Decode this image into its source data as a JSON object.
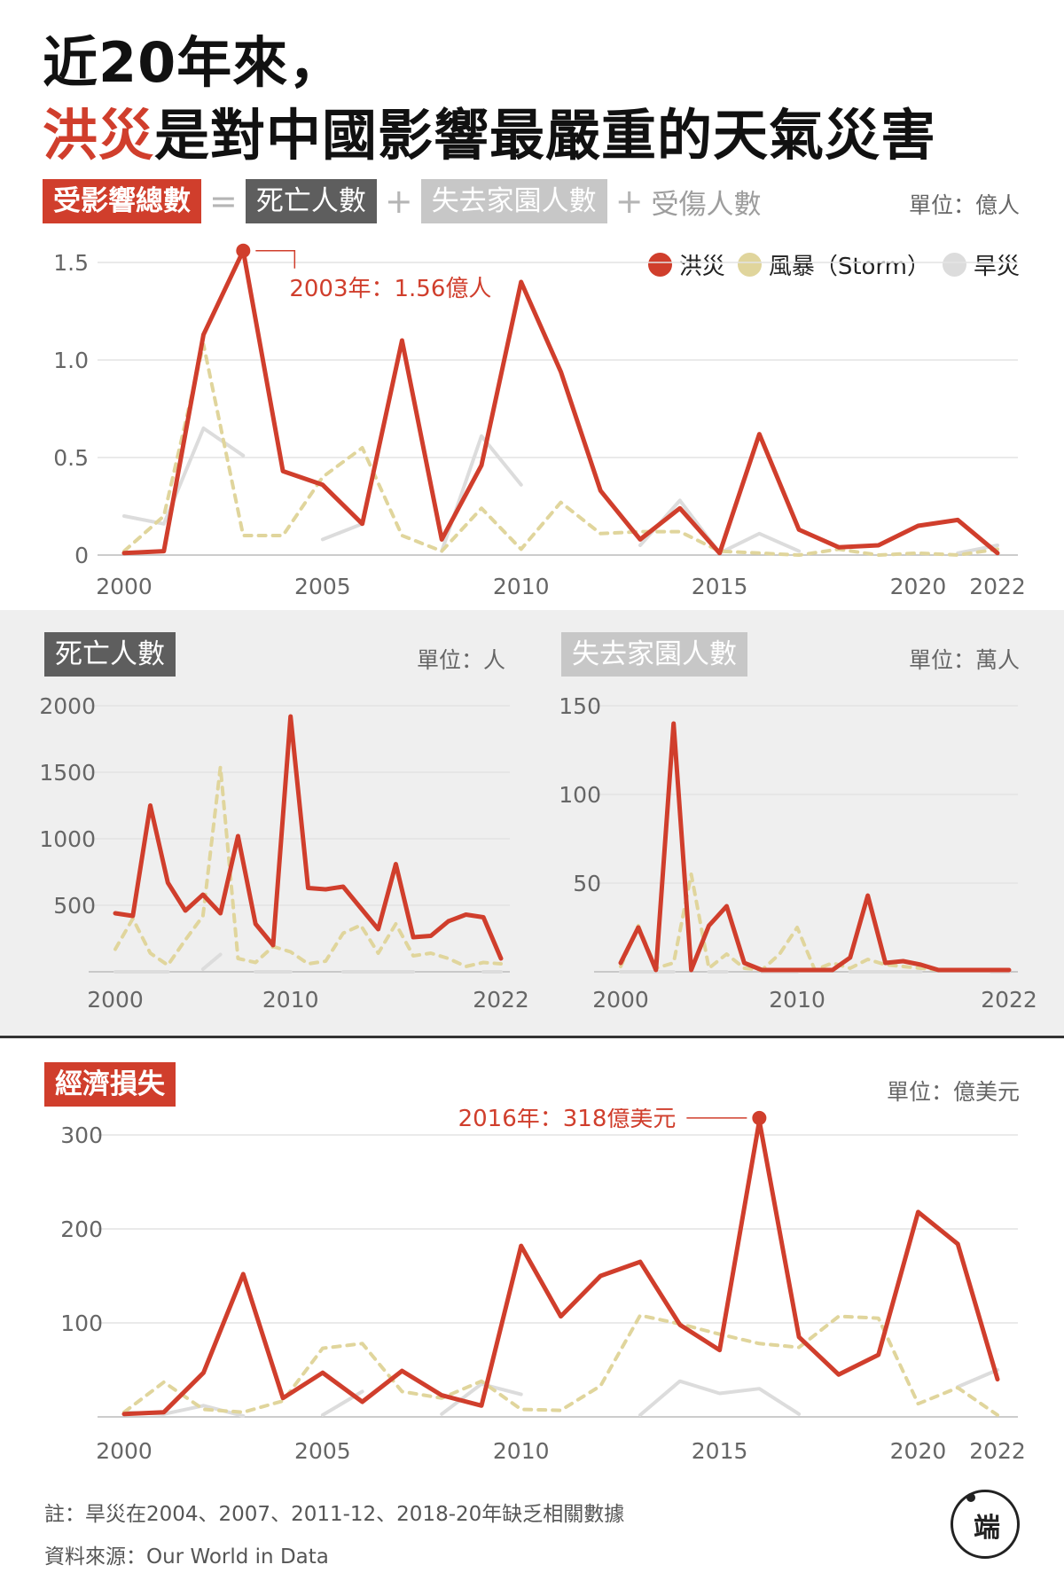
{
  "title": {
    "line1": "近20年來，",
    "highlight": "洪災",
    "line2_rest": "是對中國影響最嚴重的天氣災害"
  },
  "equation": {
    "total": "受影響總數",
    "eq": "=",
    "deaths": "死亡人數",
    "plus": "+",
    "homeless": "失去家園人數",
    "plus2": "+",
    "injured": "受傷人數"
  },
  "units": {
    "top": "單位：億人",
    "deaths": "單位：人",
    "homeless": "單位：萬人",
    "economic": "單位：億美元"
  },
  "legend": [
    {
      "name": "洪災",
      "color": "#d03e2c"
    },
    {
      "name": "風暴（Storm）",
      "color": "#e0d59c"
    },
    {
      "name": "旱災",
      "color": "#dcdcdc"
    }
  ],
  "panels": {
    "deaths": "死亡人數",
    "homeless": "失去家園人數",
    "economic": "經濟損失"
  },
  "notes": {
    "note": "註：旱災在2004、2007、2011-12、2018-20年缺乏相關數據",
    "source": "資料來源：Our World in Data"
  },
  "colors": {
    "flood": "#d03e2c",
    "storm": "#e0d59c",
    "drought": "#dcdcdc",
    "dark": "#5e5e5e"
  },
  "logo": "端",
  "chart_data": [
    {
      "type": "line",
      "id": "affected",
      "x": [
        2000,
        2001,
        2002,
        2003,
        2004,
        2005,
        2006,
        2007,
        2008,
        2009,
        2010,
        2011,
        2012,
        2013,
        2014,
        2015,
        2016,
        2017,
        2018,
        2019,
        2020,
        2021,
        2022
      ],
      "xticks": [
        "2000",
        "2005",
        "2010",
        "2015",
        "2020",
        "2022"
      ],
      "ylim": [
        0,
        1.5
      ],
      "yticks": [
        "0",
        "0.5",
        "1.0",
        "1.5"
      ],
      "series": [
        {
          "name": "洪災",
          "values": [
            0.01,
            0.02,
            1.13,
            1.56,
            0.43,
            0.36,
            0.16,
            1.1,
            0.08,
            0.46,
            1.4,
            0.94,
            0.33,
            0.08,
            0.24,
            0.01,
            0.62,
            0.13,
            0.04,
            0.05,
            0.15,
            0.18,
            0.01
          ]
        },
        {
          "name": "風暴（Storm）",
          "values": [
            0.02,
            0.2,
            1.08,
            0.1,
            0.1,
            0.4,
            0.55,
            0.1,
            0.02,
            0.24,
            0.03,
            0.27,
            0.11,
            0.12,
            0.12,
            0.02,
            0.01,
            0.0,
            0.03,
            0.0,
            0.01,
            0.0,
            0.03
          ]
        },
        {
          "name": "旱災",
          "values": [
            0.2,
            0.16,
            0.65,
            0.51,
            null,
            0.08,
            0.16,
            null,
            0.02,
            0.61,
            0.36,
            null,
            null,
            0.05,
            0.28,
            0.01,
            0.11,
            0.02,
            null,
            null,
            null,
            0.01,
            0.05
          ]
        }
      ],
      "annotation": "2003年：1.56億人"
    },
    {
      "type": "line",
      "id": "deaths",
      "x": [
        2000,
        2001,
        2002,
        2003,
        2004,
        2005,
        2006,
        2007,
        2008,
        2009,
        2010,
        2011,
        2012,
        2013,
        2014,
        2015,
        2016,
        2017,
        2018,
        2019,
        2020,
        2021,
        2022
      ],
      "xticks": [
        "2000",
        "2010",
        "2022"
      ],
      "ylim": [
        0,
        2000
      ],
      "yticks": [
        "500",
        "1000",
        "1500",
        "2000"
      ],
      "series": [
        {
          "name": "洪災",
          "values": [
            440,
            420,
            1250,
            670,
            460,
            580,
            440,
            1020,
            360,
            200,
            1920,
            630,
            620,
            640,
            480,
            320,
            810,
            260,
            270,
            380,
            430,
            410,
            100
          ]
        },
        {
          "name": "風暴（Storm）",
          "values": [
            170,
            400,
            140,
            50,
            240,
            420,
            1540,
            100,
            70,
            190,
            150,
            60,
            80,
            290,
            350,
            140,
            360,
            120,
            140,
            100,
            40,
            70,
            60
          ]
        },
        {
          "name": "旱災",
          "values": [
            0,
            0,
            0,
            0,
            null,
            20,
            130,
            null,
            0,
            0,
            0,
            null,
            null,
            0,
            0,
            0,
            0,
            0,
            null,
            null,
            null,
            0,
            0
          ]
        }
      ]
    },
    {
      "type": "line",
      "id": "homeless",
      "x": [
        2000,
        2001,
        2002,
        2003,
        2004,
        2005,
        2006,
        2007,
        2008,
        2009,
        2010,
        2011,
        2012,
        2013,
        2014,
        2015,
        2016,
        2017,
        2018,
        2019,
        2020,
        2021,
        2022
      ],
      "xticks": [
        "2000",
        "2010",
        "2022"
      ],
      "ylim": [
        0,
        150
      ],
      "yticks": [
        "50",
        "100",
        "150"
      ],
      "series": [
        {
          "name": "洪災",
          "values": [
            5,
            25,
            1,
            140,
            1,
            26,
            37,
            5,
            1,
            1,
            1,
            1,
            1,
            8,
            43,
            5,
            6,
            4,
            1,
            1,
            1,
            1,
            1
          ]
        },
        {
          "name": "風暴（Storm）",
          "values": [
            3,
            26,
            2,
            5,
            55,
            2,
            10,
            2,
            1,
            10,
            25,
            1,
            5,
            2,
            7,
            4,
            3,
            2,
            1,
            1,
            1,
            1,
            1
          ]
        },
        {
          "name": "旱災",
          "values": [
            0,
            0,
            0,
            0,
            null,
            0,
            0,
            null,
            0,
            0,
            0,
            null,
            null,
            0,
            0,
            0,
            0,
            0,
            null,
            null,
            null,
            0,
            0
          ]
        }
      ]
    },
    {
      "type": "line",
      "id": "economic",
      "x": [
        2000,
        2001,
        2002,
        2003,
        2004,
        2005,
        2006,
        2007,
        2008,
        2009,
        2010,
        2011,
        2012,
        2013,
        2014,
        2015,
        2016,
        2017,
        2018,
        2019,
        2020,
        2021,
        2022
      ],
      "xticks": [
        "2000",
        "2005",
        "2010",
        "2015",
        "2020",
        "2022"
      ],
      "ylim": [
        0,
        300
      ],
      "yticks": [
        "100",
        "200",
        "300"
      ],
      "series": [
        {
          "name": "洪災",
          "values": [
            3,
            5,
            47,
            152,
            20,
            47,
            16,
            49,
            23,
            12,
            182,
            107,
            150,
            165,
            98,
            71,
            318,
            85,
            45,
            66,
            218,
            184,
            40
          ]
        },
        {
          "name": "風暴（Storm）",
          "values": [
            5,
            37,
            8,
            5,
            17,
            73,
            78,
            27,
            20,
            38,
            8,
            7,
            33,
            108,
            99,
            88,
            78,
            74,
            107,
            105,
            14,
            31,
            2
          ]
        },
        {
          "name": "旱災",
          "values": [
            5,
            3,
            12,
            1,
            null,
            2,
            27,
            null,
            3,
            35,
            24,
            null,
            null,
            2,
            38,
            25,
            30,
            3,
            null,
            null,
            null,
            32,
            50
          ]
        }
      ],
      "annotation": "2016年：318億美元"
    }
  ]
}
